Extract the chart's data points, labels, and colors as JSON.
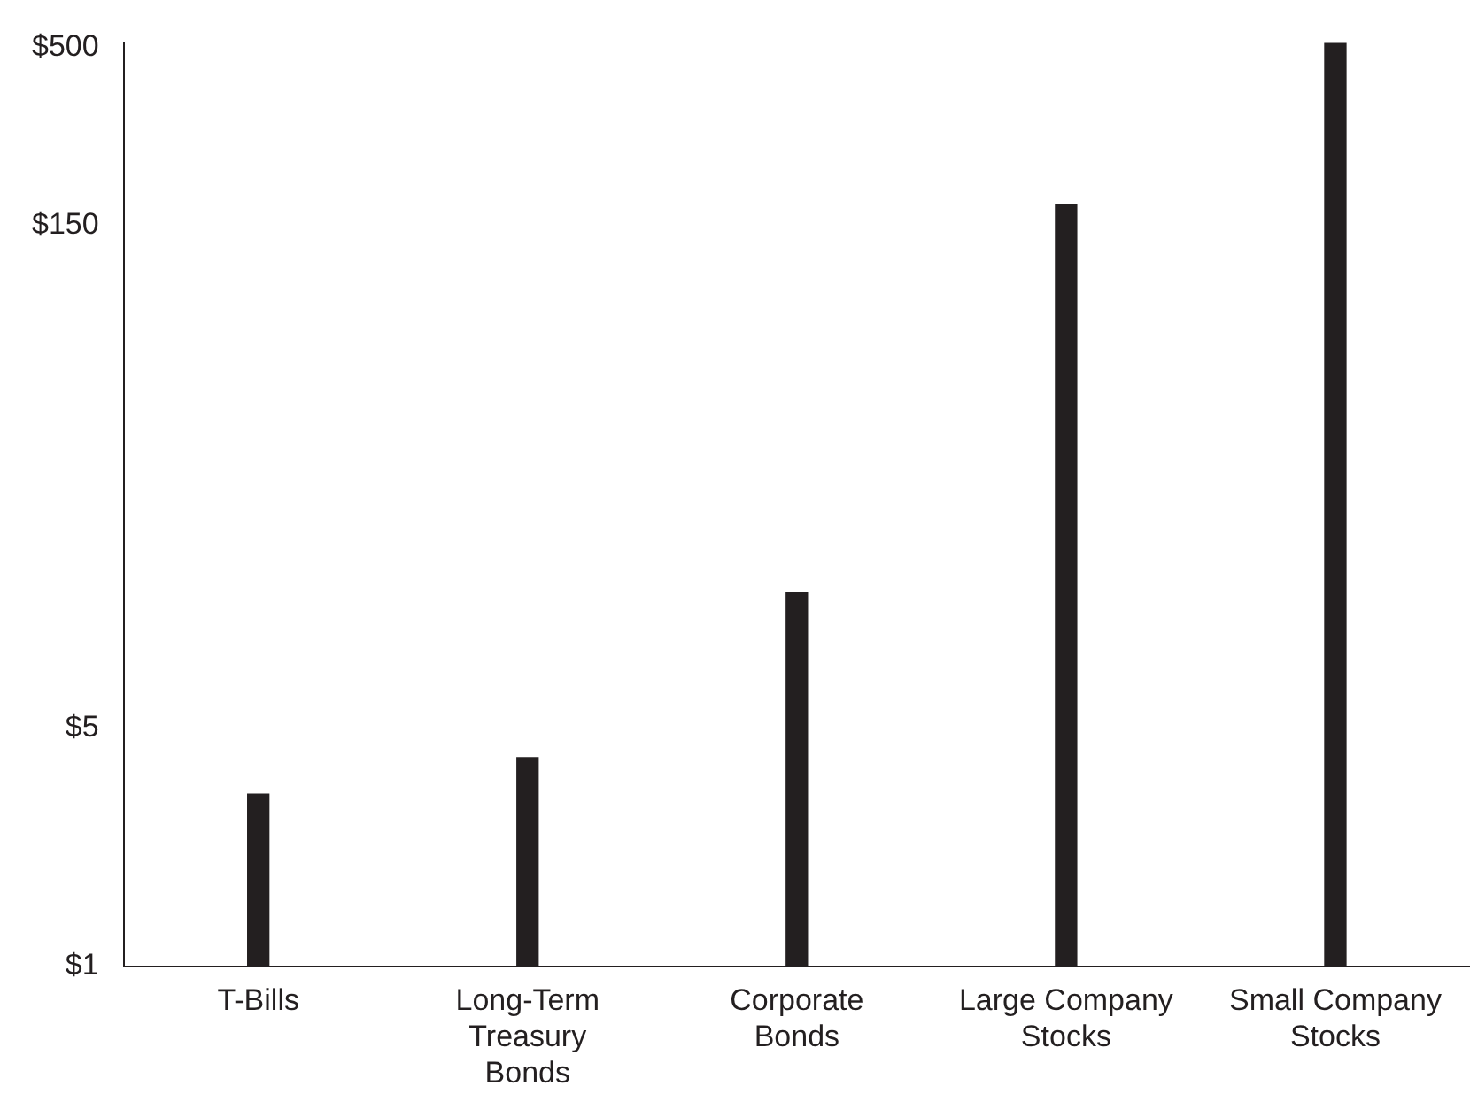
{
  "chart_data": {
    "type": "bar",
    "categories": [
      "T-Bills",
      "Long-Term Treasury Bonds",
      "Corporate Bonds",
      "Large Company Stocks",
      "Small Company Stocks"
    ],
    "values": [
      3.2,
      4.1,
      12.5,
      172,
      515
    ],
    "color": "#231f20",
    "ylim": [
      1,
      515
    ],
    "yticks": [
      {
        "value": 1,
        "label": "$1"
      },
      {
        "value": 5,
        "label": "$5"
      },
      {
        "value": 150,
        "label": "$150"
      },
      {
        "value": 500,
        "label": "$500"
      }
    ],
    "grid": false,
    "legend": false,
    "log": true
  }
}
